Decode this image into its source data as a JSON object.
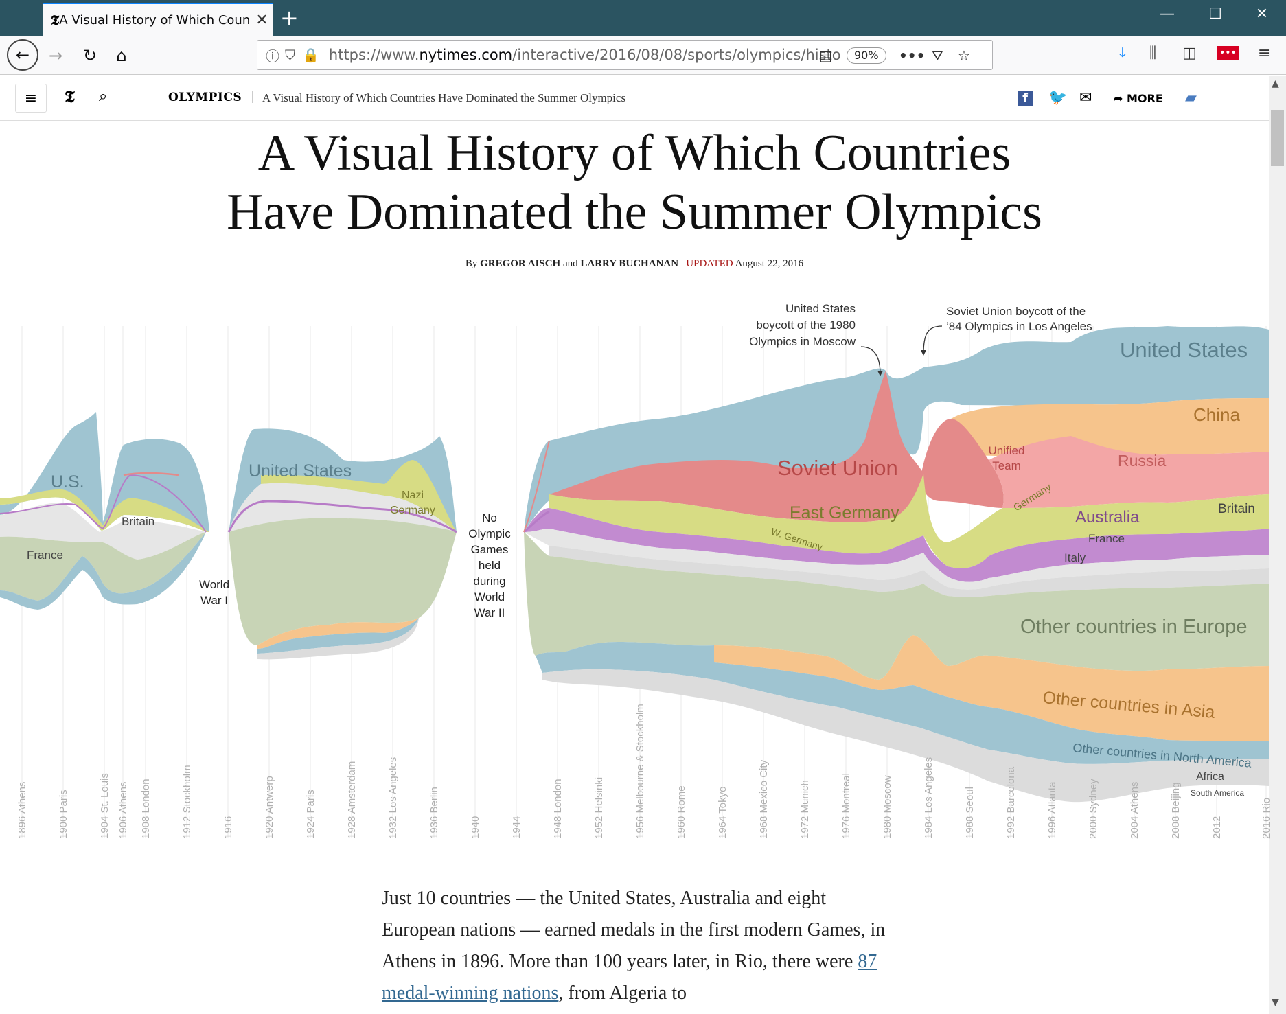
{
  "browser": {
    "tab_title": "A Visual History of Which Coun",
    "url_prefix": "https://www.",
    "url_domain": "nytimes.com",
    "url_path": "/interactive/2016/08/08/sports/olympics/histo",
    "zoom": "90%"
  },
  "header": {
    "section": "OLYMPICS",
    "title": "A Visual History of Which Countries Have Dominated the Summer Olympics",
    "more_label": "MORE"
  },
  "article": {
    "headline_line1": "A Visual History of Which Countries",
    "headline_line2": "Have Dominated the Summer Olympics",
    "byline_by": "By",
    "author1": "GREGOR AISCH",
    "byline_and": "and",
    "author2": "LARRY BUCHANAN",
    "updated_label": "UPDATED",
    "date": "August 22, 2016",
    "para_before_link": "Just 10 countries — the United States, Australia and eight European nations — earned medals in the first modern Games, in Athens in 1896. More than 100 years later, in Rio, there were ",
    "para_link": "87 medal-winning nations",
    "para_after_link": ", from Algeria to"
  },
  "chart_data": {
    "type": "area",
    "x": [
      "1896 Athens",
      "1900 Paris",
      "1904 St. Louis",
      "1906 Athens",
      "1908 London",
      "1912 Stockholm",
      "1916",
      "1920 Antwerp",
      "1924 Paris",
      "1928 Amsterdam",
      "1932 Los Angeles",
      "1936 Berlin",
      "1940",
      "1944",
      "1948 London",
      "1952 Helsinki",
      "1956 Melbourne & Stockholm",
      "1960 Rome",
      "1964 Tokyo",
      "1968 Mexico City",
      "1972 Munich",
      "1976 Montreal",
      "1980 Moscow",
      "1984 Los Angeles",
      "1988 Seoul",
      "1992 Barcelona",
      "1996 Atlanta",
      "2000 Sydney",
      "2004 Athens",
      "2008 Beijing",
      "2012",
      "2016 Rio"
    ],
    "series_labels": [
      "U.S.",
      "France",
      "Britain",
      "United States",
      "Nazi Germany",
      "Soviet Union",
      "East Germany",
      "W. Germany",
      "Unified Team",
      "Germany",
      "China",
      "Russia",
      "Australia",
      "Italy",
      "Other countries in Europe",
      "Other countries in Asia",
      "Other countries in North America",
      "Africa",
      "South America"
    ],
    "gap_labels": {
      "ww1": [
        "World",
        "War I"
      ],
      "ww2": [
        "No",
        "Olympic",
        "Games",
        "held",
        "during",
        "World",
        "War II"
      ]
    },
    "annotations": {
      "us_boycott": [
        "United States",
        "boycott of the 1980",
        "Olympics in Moscow"
      ],
      "soviet_boycott": [
        "Soviet Union boycott of the",
        "’84 Olympics in Los Angeles"
      ]
    },
    "colors": {
      "us": "#9fc4d1",
      "soviet": "#e48a8a",
      "russia": "#f3a6a6",
      "germany": "#d7dc84",
      "china": "#f6c48c",
      "asia": "#f6c48c",
      "australia": "#c28bd0",
      "europe": "#c8d4b6",
      "britain": "#dedede",
      "north_america": "#9fc4d1"
    }
  }
}
